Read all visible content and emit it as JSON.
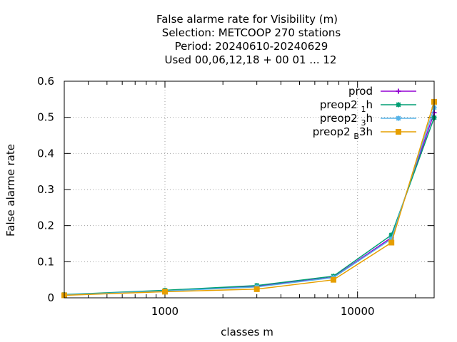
{
  "chart_data": {
    "type": "line",
    "title_lines": [
      "False alarme rate  for Visibility (m)",
      "Selection: METCOOP    270 stations",
      "Period: 20240610-20240629",
      "Used  00,06,12,18 + 00 01 ... 12"
    ],
    "xlabel": "classes m",
    "ylabel": "False alarme rate",
    "xscale": "log",
    "xlim": [
      300,
      25000
    ],
    "ylim": [
      0,
      0.6
    ],
    "x_ticks": [
      {
        "value": 1000,
        "label": "1000"
      },
      {
        "value": 10000,
        "label": "10000"
      }
    ],
    "y_ticks": [
      {
        "value": 0,
        "label": "0"
      },
      {
        "value": 0.1,
        "label": "0.1"
      },
      {
        "value": 0.2,
        "label": "0.2"
      },
      {
        "value": 0.3,
        "label": "0.3"
      },
      {
        "value": 0.4,
        "label": "0.4"
      },
      {
        "value": 0.5,
        "label": "0.5"
      },
      {
        "value": 0.6,
        "label": "0.6"
      }
    ],
    "grid": true,
    "legend_position": "top-right",
    "x": [
      300,
      1000,
      3000,
      7500,
      15000,
      25000
    ],
    "series": [
      {
        "name": "prod",
        "color": "#9400d3",
        "marker": "plus",
        "values": [
          0.008,
          0.02,
          0.032,
          0.057,
          0.167,
          0.513
        ]
      },
      {
        "name": "preop2_1h",
        "legend": {
          "base": "preop2 ",
          "sub": "1",
          "suffix": "h"
        },
        "color": "#009e73",
        "marker": "star",
        "values": [
          0.009,
          0.021,
          0.034,
          0.06,
          0.174,
          0.499
        ]
      },
      {
        "name": "preop2_3h",
        "legend": {
          "base": "preop2 ",
          "sub": "3",
          "suffix": "h"
        },
        "color": "#56b4e9",
        "marker": "star",
        "values": [
          0.008,
          0.019,
          0.03,
          0.056,
          0.163,
          0.527
        ]
      },
      {
        "name": "preop2_B3h",
        "legend": {
          "base": "preop2 ",
          "sub": "B",
          "suffix": "3h"
        },
        "color": "#e69f00",
        "marker": "square",
        "values": [
          0.007,
          0.017,
          0.024,
          0.05,
          0.153,
          0.543
        ]
      }
    ]
  }
}
